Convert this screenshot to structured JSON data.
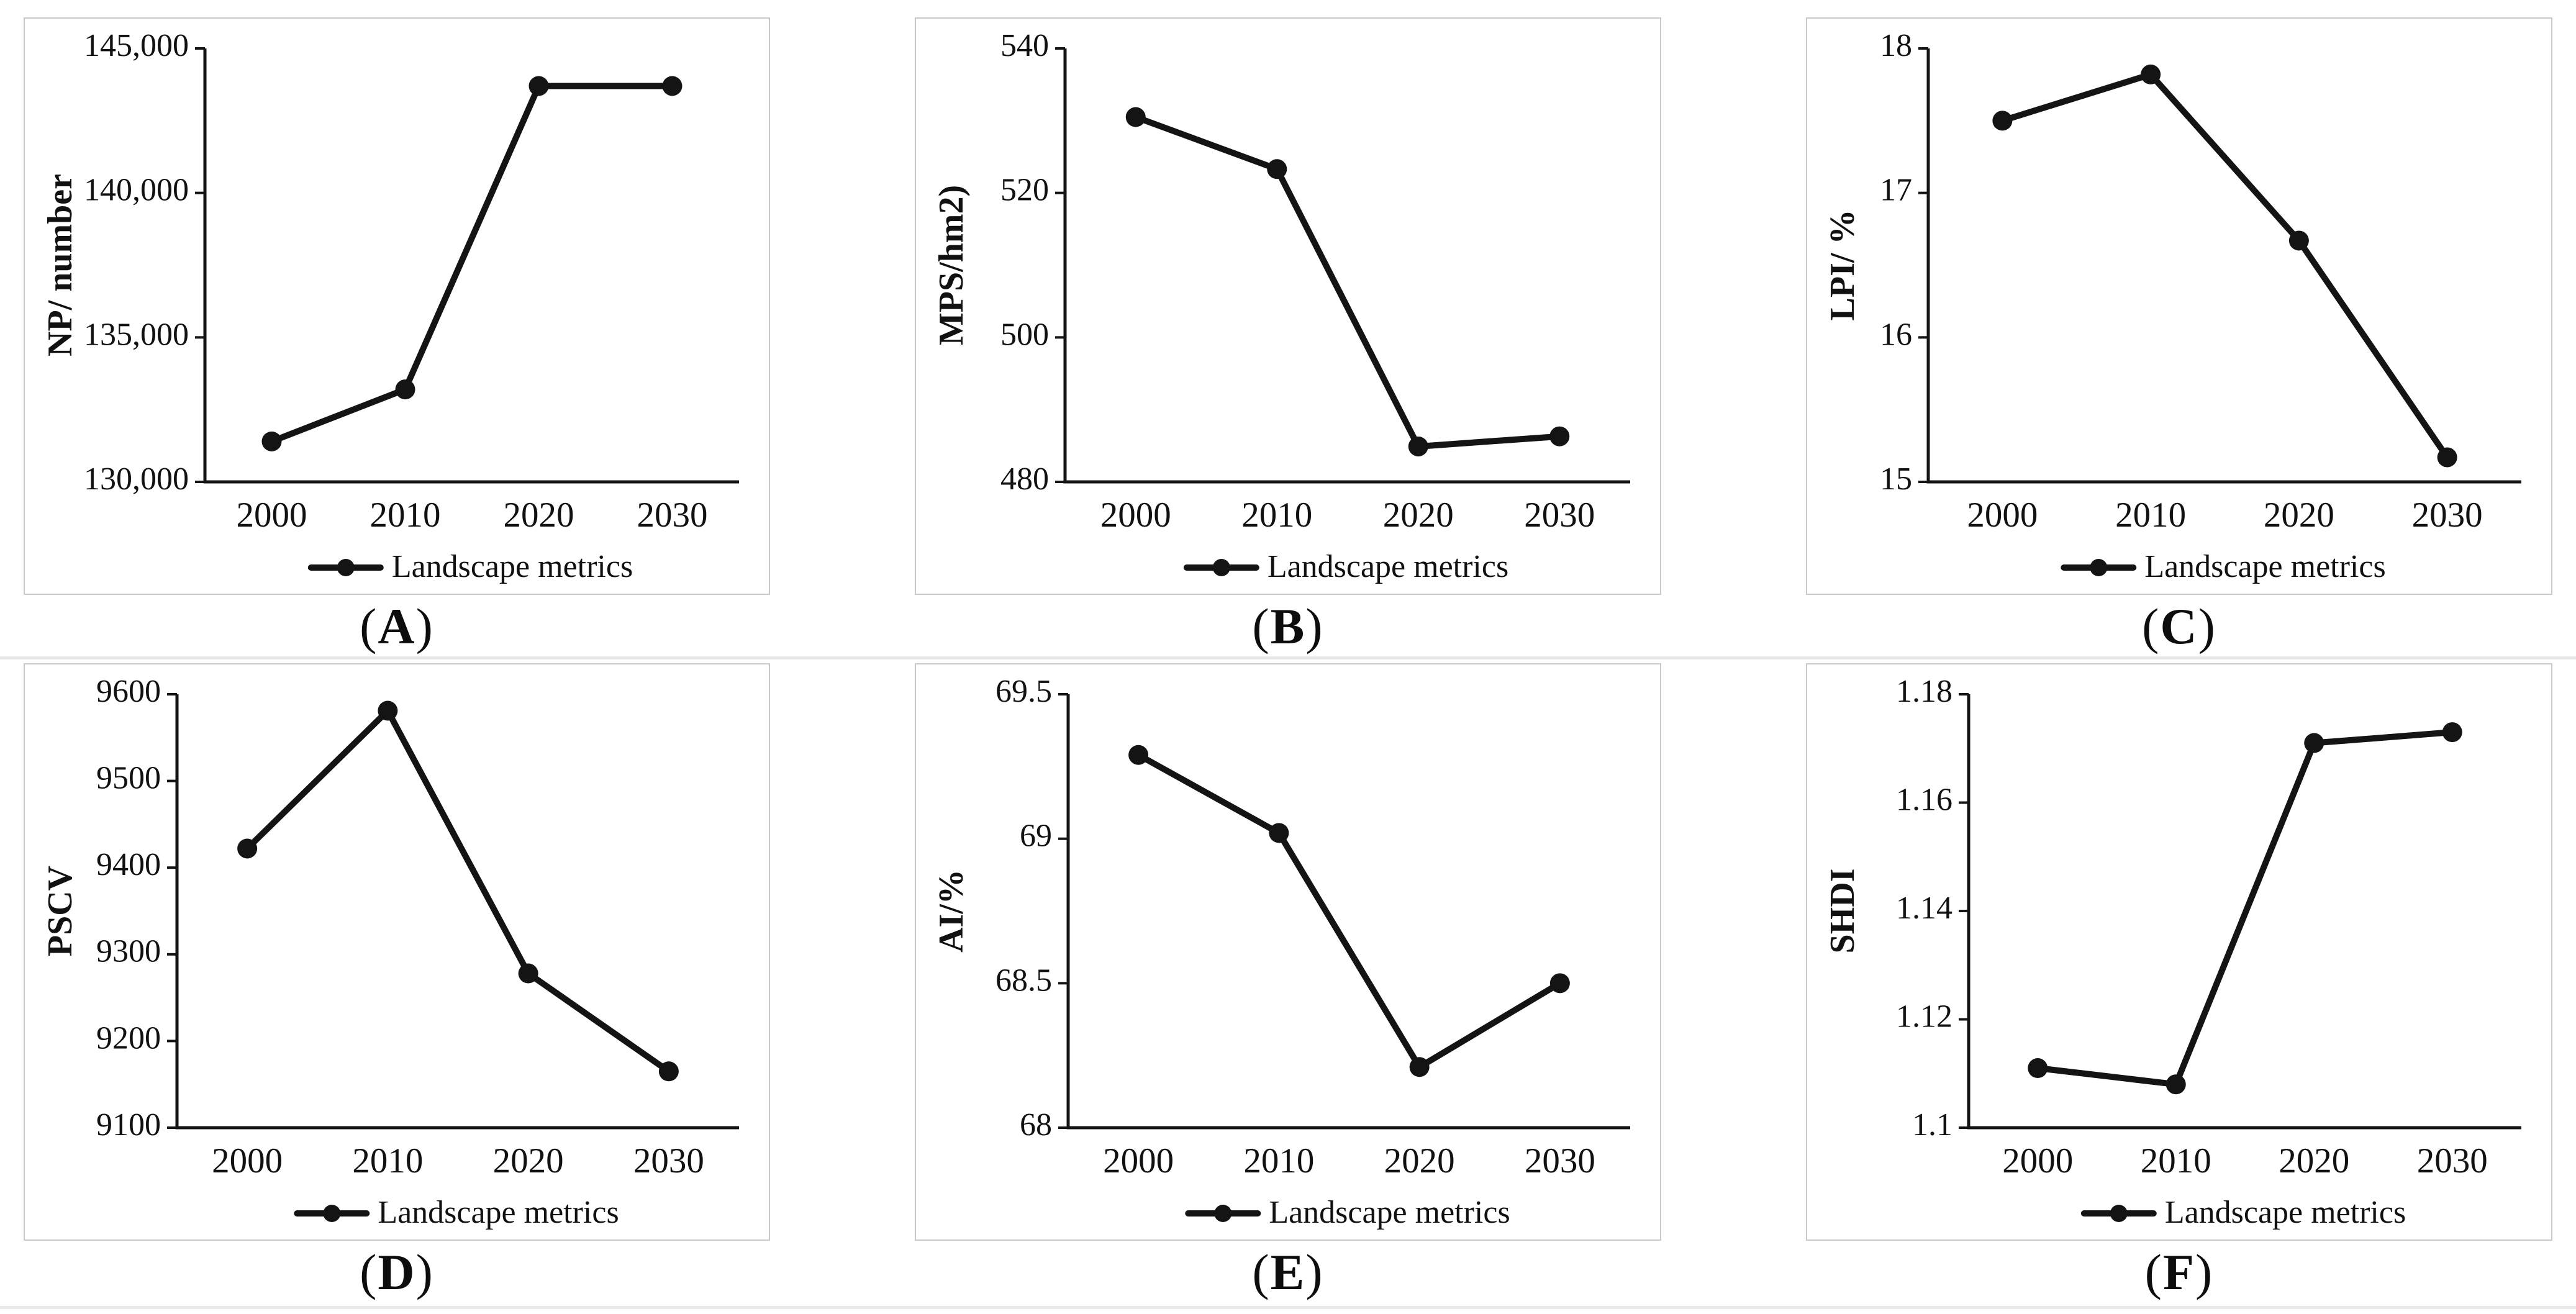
{
  "figure": {
    "x_categories": [
      "2000",
      "2010",
      "2020",
      "2030"
    ],
    "legend_label": "Landscape metrics",
    "line_color": "#141414",
    "panel_border_color": "#c9c9c9",
    "separator_color": "#e8e8e8"
  },
  "chart_data": [
    {
      "type": "line",
      "panel": "A",
      "ylabel": "NP/ number",
      "x": [
        "2000",
        "2010",
        "2020",
        "2030"
      ],
      "values": [
        131400,
        133200,
        143700,
        143700
      ],
      "ylim": [
        130000,
        145000
      ],
      "ytick_labels": [
        "130,000",
        "135,000",
        "140,000",
        "145,000"
      ],
      "legend": "Landscape metrics",
      "legend_position": "bottom",
      "grid": false,
      "caption_open": "(",
      "caption_letter": "A",
      "caption_close": ")"
    },
    {
      "type": "line",
      "panel": "B",
      "ylabel": "MPS/hm2)",
      "x": [
        "2000",
        "2010",
        "2020",
        "2030"
      ],
      "values": [
        530.5,
        523.3,
        484.9,
        486.3
      ],
      "ylim": [
        480,
        540
      ],
      "ytick_labels": [
        "480",
        "500",
        "520",
        "540"
      ],
      "legend": "Landscape metrics",
      "legend_position": "bottom",
      "grid": false,
      "caption_open": "(",
      "caption_letter": "B",
      "caption_close": ")"
    },
    {
      "type": "line",
      "panel": "C",
      "ylabel": "LPI/ %",
      "x": [
        "2000",
        "2010",
        "2020",
        "2030"
      ],
      "values": [
        17.5,
        17.82,
        16.67,
        15.17
      ],
      "ylim": [
        15,
        18
      ],
      "ytick_labels": [
        "15",
        "16",
        "17",
        "18"
      ],
      "legend": "Landscape metrics",
      "legend_position": "bottom",
      "grid": false,
      "caption_open": "(",
      "caption_letter": "C",
      "caption_close": ")"
    },
    {
      "type": "line",
      "panel": "D",
      "ylabel": "PSCV",
      "x": [
        "2000",
        "2010",
        "2020",
        "2030"
      ],
      "values": [
        9422,
        9581,
        9278,
        9165
      ],
      "ylim": [
        9100,
        9600
      ],
      "ytick_labels": [
        "9100",
        "9200",
        "9300",
        "9400",
        "9500",
        "9600"
      ],
      "legend": "Landscape metrics",
      "legend_position": "bottom",
      "grid": false,
      "caption_open": "(",
      "caption_letter": "D",
      "caption_close": ")"
    },
    {
      "type": "line",
      "panel": "E",
      "ylabel": "AI/%",
      "x": [
        "2000",
        "2010",
        "2020",
        "2030"
      ],
      "values": [
        69.29,
        69.02,
        68.21,
        68.5
      ],
      "ylim": [
        68,
        69.5
      ],
      "ytick_labels": [
        "68",
        "68.5",
        "69",
        "69.5"
      ],
      "legend": "Landscape metrics",
      "legend_position": "bottom",
      "grid": false,
      "caption_open": "(",
      "caption_letter": "E",
      "caption_close": ")"
    },
    {
      "type": "line",
      "panel": "F",
      "ylabel": "SHDI",
      "x": [
        "2000",
        "2010",
        "2020",
        "2030"
      ],
      "values": [
        1.111,
        1.108,
        1.171,
        1.173
      ],
      "ylim": [
        1.1,
        1.18
      ],
      "ytick_labels": [
        "1.1",
        "1.12",
        "1.14",
        "1.16",
        "1.18"
      ],
      "legend": "Landscape metrics",
      "legend_position": "bottom",
      "grid": false,
      "caption_open": "(",
      "caption_letter": "F",
      "caption_close": ")"
    }
  ]
}
